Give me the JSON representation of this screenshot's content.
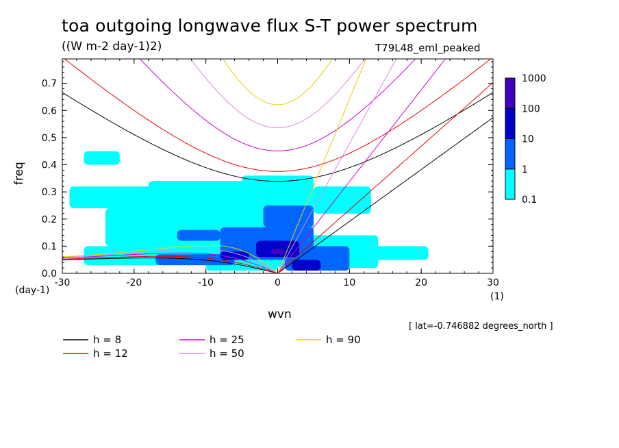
{
  "header": {
    "title": "toa outgoing longwave flux S-T power spectrum",
    "units": "((W m-2 day-1)2)",
    "experiment": "T79L48_eml_peaked"
  },
  "axes": {
    "ylabel": "freq",
    "yunits": "(day-1)",
    "xlabel": "wvn",
    "xunits": "(1)"
  },
  "footnote": "[ lat=-0.746882 degrees_north ]",
  "colors": {
    "level1": "#00ffff",
    "level2": "#0066ff",
    "level3": "#0000cc",
    "level4": "#4400bb",
    "h8": "#000000",
    "h12": "#ee0000",
    "h25": "#cc00cc",
    "h50": "#dd88dd",
    "h90": "#eecc00"
  },
  "chart_data": {
    "type": "heatmap",
    "title": "toa outgoing longwave flux S-T power spectrum",
    "xlabel": "wvn",
    "ylabel": "freq",
    "xlim": [
      -30,
      30
    ],
    "ylim": [
      0,
      0.79
    ],
    "x_ticks": [
      "-30",
      "-20",
      "-10",
      "0",
      "10",
      "20",
      "30"
    ],
    "y_ticks": [
      "0.0",
      "0.1",
      "0.2",
      "0.3",
      "0.4",
      "0.5",
      "0.6",
      "0.7"
    ],
    "colorbar": {
      "levels": [
        "0.1",
        "1",
        "10",
        "100",
        "1000"
      ],
      "colors": [
        "#00ffff",
        "#0066ff",
        "#0000cc",
        "#4400bb"
      ]
    },
    "regions": [
      {
        "level": 0,
        "x": [
          -27,
          -4
        ],
        "y": [
          0.03,
          0.1
        ]
      },
      {
        "level": 0,
        "x": [
          -24,
          -2
        ],
        "y": [
          0.1,
          0.24
        ]
      },
      {
        "level": 0,
        "x": [
          -29,
          -16
        ],
        "y": [
          0.24,
          0.32
        ]
      },
      {
        "level": 0,
        "x": [
          -18,
          -3
        ],
        "y": [
          0.2,
          0.34
        ]
      },
      {
        "level": 0,
        "x": [
          -5,
          5
        ],
        "y": [
          0.1,
          0.36
        ]
      },
      {
        "level": 0,
        "x": [
          -10,
          0
        ],
        "y": [
          0.01,
          0.08
        ]
      },
      {
        "level": 0,
        "x": [
          0,
          14
        ],
        "y": [
          0.02,
          0.14
        ]
      },
      {
        "level": 0,
        "x": [
          5,
          13
        ],
        "y": [
          0.22,
          0.32
        ]
      },
      {
        "level": 0,
        "x": [
          13,
          21
        ],
        "y": [
          0.05,
          0.1
        ]
      },
      {
        "level": 0,
        "x": [
          -27,
          -22
        ],
        "y": [
          0.4,
          0.45
        ]
      },
      {
        "level": 1,
        "x": [
          -8,
          5
        ],
        "y": [
          0.05,
          0.17
        ]
      },
      {
        "level": 1,
        "x": [
          -2,
          5
        ],
        "y": [
          0.17,
          0.25
        ]
      },
      {
        "level": 1,
        "x": [
          -17,
          -6
        ],
        "y": [
          0.03,
          0.07
        ]
      },
      {
        "level": 1,
        "x": [
          1,
          10
        ],
        "y": [
          0.01,
          0.1
        ]
      },
      {
        "level": 1,
        "x": [
          -14,
          -8
        ],
        "y": [
          0.12,
          0.16
        ]
      },
      {
        "level": 2,
        "x": [
          -3,
          3
        ],
        "y": [
          0.06,
          0.12
        ]
      },
      {
        "level": 2,
        "x": [
          2,
          6
        ],
        "y": [
          0.01,
          0.05
        ]
      },
      {
        "level": 2,
        "x": [
          -8,
          -4
        ],
        "y": [
          0.05,
          0.08
        ]
      },
      {
        "level": 3,
        "x": [
          -1,
          1
        ],
        "y": [
          0.07,
          0.09
        ]
      }
    ],
    "series": [
      {
        "name": "h = 8",
        "equivalent_depth": 8,
        "color": "#000000"
      },
      {
        "name": "h = 12",
        "equivalent_depth": 12,
        "color": "#ee0000"
      },
      {
        "name": "h = 25",
        "equivalent_depth": 25,
        "color": "#cc00cc"
      },
      {
        "name": "h = 50",
        "equivalent_depth": 50,
        "color": "#dd88dd"
      },
      {
        "name": "h = 90",
        "equivalent_depth": 90,
        "color": "#eecc00"
      }
    ],
    "legend_position": "bottom"
  }
}
